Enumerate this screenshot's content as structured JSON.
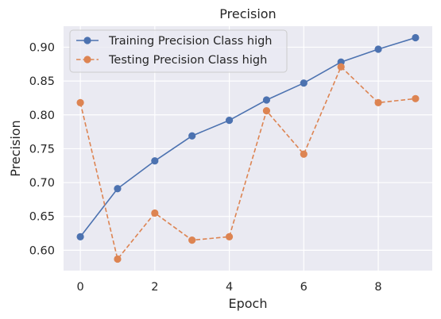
{
  "chart_data": {
    "type": "line",
    "title": "Precision",
    "xlabel": "Epoch",
    "ylabel": "Precision",
    "x": [
      0,
      1,
      2,
      3,
      4,
      5,
      6,
      7,
      8,
      9
    ],
    "xticks": [
      0,
      2,
      4,
      6,
      8
    ],
    "yticks": [
      0.6,
      0.65,
      0.7,
      0.75,
      0.8,
      0.85,
      0.9
    ],
    "ytick_labels": [
      "0.60",
      "0.65",
      "0.70",
      "0.75",
      "0.80",
      "0.85",
      "0.90"
    ],
    "xlim": [
      -0.45,
      9.45
    ],
    "ylim": [
      0.57,
      0.931
    ],
    "grid": true,
    "legend_position": "top-left",
    "series": [
      {
        "name": "Training Precision Class high",
        "color": "#4c72b0",
        "line_style": "solid",
        "marker": "circle",
        "values": [
          0.62,
          0.691,
          0.732,
          0.769,
          0.792,
          0.822,
          0.847,
          0.878,
          0.897,
          0.914
        ]
      },
      {
        "name": "Testing Precision Class high",
        "color": "#dd8452",
        "line_style": "dashed",
        "marker": "circle",
        "values": [
          0.818,
          0.587,
          0.655,
          0.615,
          0.62,
          0.806,
          0.742,
          0.871,
          0.818,
          0.824
        ]
      }
    ]
  }
}
